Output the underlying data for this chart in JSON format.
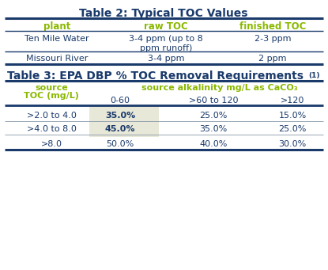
{
  "table2_title": "Table 2: Typical TOC Values",
  "table2_headers": [
    "plant",
    "raw TOC",
    "finished TOC"
  ],
  "table2_row1": [
    "Ten Mile Water",
    "3-4 ppm (up to 8\nppm runoff)",
    "2-3 ppm"
  ],
  "table2_row2": [
    "Missouri River",
    "3-4 ppm",
    "2 ppm"
  ],
  "table3_title": "Table 3: EPA DBP % TOC Removal Requirements",
  "table3_superscript": "(1)",
  "table3_col_header": "source alkalinity mg/L as CaCO₃",
  "table3_row_header_line1": "source",
  "table3_row_header_line2": "TOC (mg/L)",
  "table3_sub_headers": [
    "0-60",
    ">60 to 120",
    ">120"
  ],
  "table3_rows": [
    [
      ">2.0 to 4.0",
      "35.0%",
      "25.0%",
      "15.0%"
    ],
    [
      ">4.0 to 8.0",
      "45.0%",
      "35.0%",
      "25.0%"
    ],
    [
      ">8.0",
      "50.0%",
      "40.0%",
      "30.0%"
    ]
  ],
  "highlight_color": "#e8e8d8",
  "color_green": "#8ab800",
  "color_navy": "#1a3a6b",
  "color_line_heavy": "#1a3a6b",
  "color_line_light": "#4a6090",
  "bg": "#ffffff"
}
